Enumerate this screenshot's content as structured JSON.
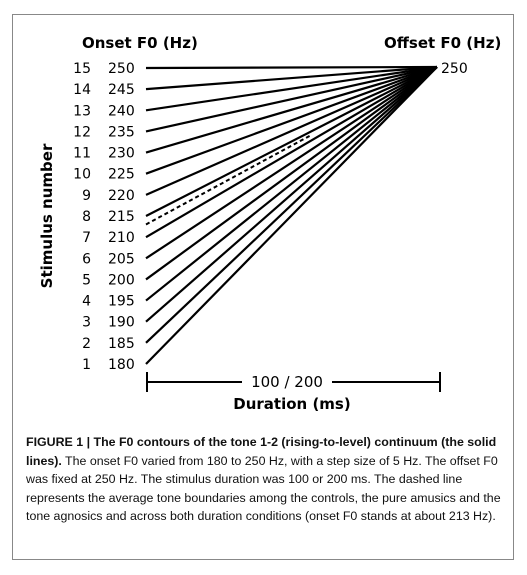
{
  "chart_data": {
    "type": "line",
    "onset_header": "Onset F0 (Hz)",
    "offset_header": "Offset F0 (Hz)",
    "offset_value": "250",
    "ylabel": "Stimulus number",
    "xlabel": "Duration  (ms)",
    "duration_label": "100 / 200",
    "stimuli": [
      {
        "number": "15",
        "onset": "250"
      },
      {
        "number": "14",
        "onset": "245"
      },
      {
        "number": "13",
        "onset": "240"
      },
      {
        "number": "12",
        "onset": "235"
      },
      {
        "number": "11",
        "onset": "230"
      },
      {
        "number": "10",
        "onset": "225"
      },
      {
        "number": "9",
        "onset": "220"
      },
      {
        "number": "8",
        "onset": "215"
      },
      {
        "number": "7",
        "onset": "210"
      },
      {
        "number": "6",
        "onset": "205"
      },
      {
        "number": "5",
        "onset": "200"
      },
      {
        "number": "4",
        "onset": "195"
      },
      {
        "number": "3",
        "onset": "190"
      },
      {
        "number": "2",
        "onset": "185"
      },
      {
        "number": "1",
        "onset": "180"
      }
    ],
    "boundary": {
      "onset": 213,
      "offset": 250,
      "style": "dashed"
    },
    "onset_range": [
      180,
      250
    ],
    "offset_fixed": 250
  },
  "caption": {
    "lead": "FIGURE 1 | The F0 contours of the tone 1-2 (rising-to-level) continuum (the solid lines).",
    "body": " The onset F0 varied from 180 to 250 Hz, with a step size of 5 Hz. The offset F0 was fixed at 250 Hz. The stimulus duration was 100 or 200 ms. The dashed line represents the average tone boundaries among the controls, the pure amusics and the tone agnosics and across both duration conditions (onset F0 stands at about 213 Hz)."
  }
}
